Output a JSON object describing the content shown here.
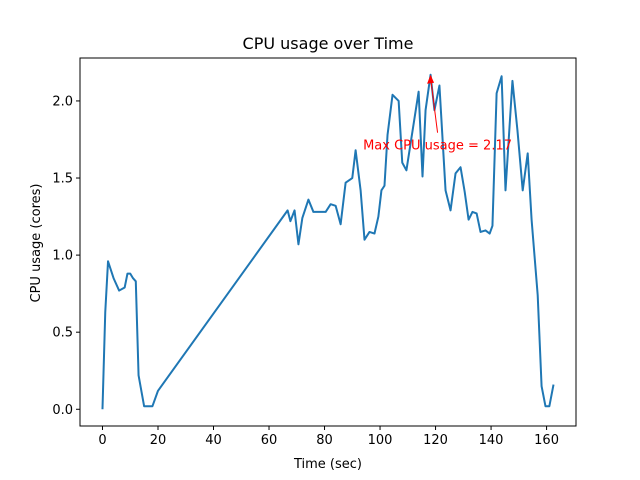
{
  "chart_data": {
    "type": "line",
    "title": "CPU usage over Time",
    "xlabel": "Time (sec)",
    "ylabel": "CPU usage (cores)",
    "x": [
      0,
      1,
      2,
      4,
      6,
      8,
      9,
      10,
      11,
      12,
      13,
      15,
      18,
      20,
      66.7,
      67.7,
      69.2,
      70.6,
      72,
      74.2,
      76,
      77.8,
      80.4,
      82.2,
      84,
      85.8,
      87.6,
      90,
      91.2,
      93,
      94.4,
      96.2,
      98,
      99.4,
      100.5,
      101.6,
      102.7,
      104.5,
      106.7,
      108,
      109.5,
      113.9,
      115.3,
      116.4,
      118.2,
      119.6,
      121.4,
      123.6,
      125.4,
      127.2,
      129,
      130.5,
      131.9,
      133.3,
      134.8,
      136.2,
      138,
      139.5,
      140.5,
      142,
      143.8,
      145.2,
      147.7,
      149.5,
      151.4,
      153.2,
      154.6,
      156.8,
      158.2,
      159.6,
      161,
      162.5
    ],
    "series": [
      {
        "name": "CPU usage",
        "color": "#1f77b4",
        "values": [
          0,
          0.63,
          0.96,
          0.85,
          0.77,
          0.79,
          0.88,
          0.88,
          0.85,
          0.83,
          0.22,
          0.02,
          0.02,
          0.12,
          1.29,
          1.22,
          1.29,
          1.07,
          1.24,
          1.36,
          1.28,
          1.28,
          1.28,
          1.33,
          1.32,
          1.2,
          1.47,
          1.5,
          1.68,
          1.42,
          1.1,
          1.15,
          1.14,
          1.25,
          1.42,
          1.45,
          1.78,
          2.04,
          2.0,
          1.6,
          1.55,
          2.06,
          1.51,
          1.94,
          2.17,
          1.94,
          2.1,
          1.42,
          1.29,
          1.53,
          1.57,
          1.41,
          1.23,
          1.28,
          1.27,
          1.15,
          1.16,
          1.14,
          1.19,
          2.05,
          2.16,
          1.42,
          2.13,
          1.81,
          1.42,
          1.66,
          1.23,
          0.74,
          0.15,
          0.02,
          0.02,
          0.16
        ]
      }
    ],
    "annotation": {
      "text": "Max CPU usage = 2.17",
      "color": "#ff0000",
      "point": "chart_data.series.0.values.44"
    },
    "xlim": [
      -8.1,
      170.6
    ],
    "ylim": [
      -0.1085,
      2.2785
    ],
    "xticks": [
      0,
      20,
      40,
      60,
      80,
      100,
      120,
      140,
      160
    ],
    "yticks": [
      {
        "value": 0,
        "label": "0.0"
      },
      {
        "value": 0.5,
        "label": "0.5"
      },
      {
        "value": 1,
        "label": "1.0"
      },
      {
        "value": 1.5,
        "label": "1.5"
      },
      {
        "value": 2,
        "label": "2.0"
      }
    ],
    "grid": false
  }
}
